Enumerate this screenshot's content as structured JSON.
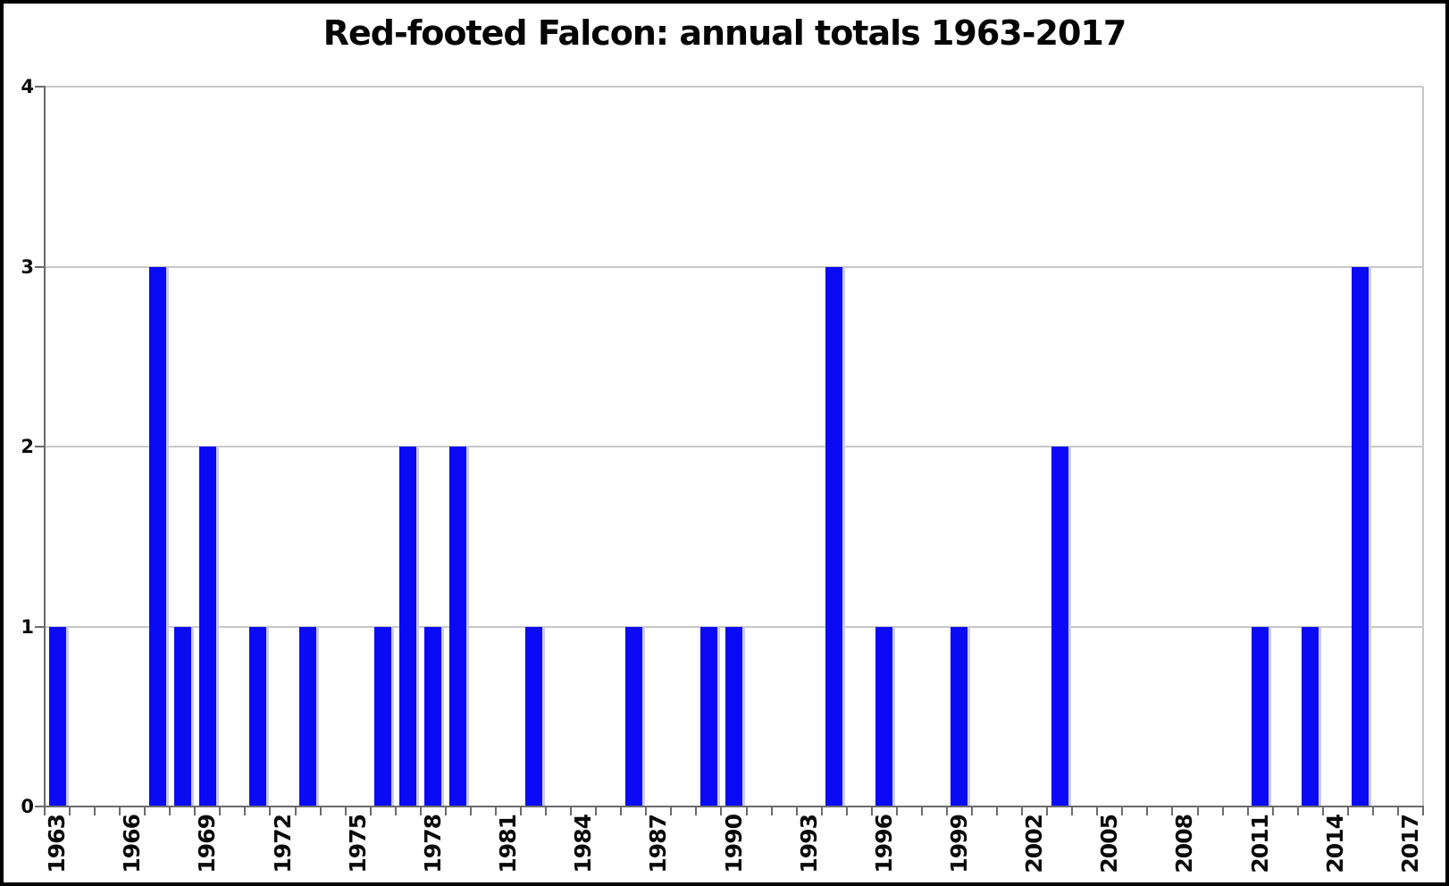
{
  "chart_data": {
    "type": "bar",
    "title": "Red-footed Falcon: annual totals 1963-2017",
    "categories": [
      1963,
      1964,
      1965,
      1966,
      1967,
      1968,
      1969,
      1970,
      1971,
      1972,
      1973,
      1974,
      1975,
      1976,
      1977,
      1978,
      1979,
      1980,
      1981,
      1982,
      1983,
      1984,
      1985,
      1986,
      1987,
      1988,
      1989,
      1990,
      1991,
      1992,
      1993,
      1994,
      1995,
      1996,
      1997,
      1998,
      1999,
      2000,
      2001,
      2002,
      2003,
      2004,
      2005,
      2006,
      2007,
      2008,
      2009,
      2010,
      2011,
      2012,
      2013,
      2014,
      2015,
      2016,
      2017
    ],
    "values": [
      1,
      0,
      0,
      0,
      3,
      1,
      2,
      0,
      1,
      0,
      1,
      0,
      0,
      1,
      2,
      1,
      2,
      0,
      0,
      1,
      0,
      0,
      0,
      1,
      0,
      0,
      1,
      1,
      0,
      0,
      0,
      3,
      0,
      1,
      0,
      0,
      1,
      0,
      0,
      0,
      2,
      0,
      0,
      0,
      0,
      0,
      0,
      0,
      1,
      0,
      1,
      0,
      3,
      0,
      0
    ],
    "xlabel": "",
    "ylabel": "",
    "xtick_labels": [
      "1963",
      "1966",
      "1969",
      "1972",
      "1975",
      "1978",
      "1981",
      "1984",
      "1987",
      "1990",
      "1993",
      "1996",
      "1999",
      "2002",
      "2005",
      "2008",
      "2011",
      "2014",
      "2017"
    ],
    "yticks": [
      0,
      1,
      2,
      3,
      4
    ],
    "ylim": [
      0,
      4
    ],
    "grid": true,
    "legend_position": "none",
    "bar_color": "#0a0af5",
    "grid_color": "#c7c7c7",
    "axis_color": "#6b6b6b",
    "frame_color": "#000000",
    "text_color": "#0a0a0a"
  }
}
